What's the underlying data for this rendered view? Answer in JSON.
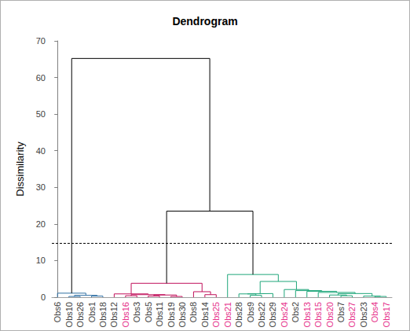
{
  "chart_data": {
    "type": "dendrogram",
    "title": "Dendrogram",
    "y_label": "Dissimilarity",
    "ylim": [
      0,
      70
    ],
    "yticks": [
      0,
      10,
      20,
      30,
      40,
      50,
      60,
      70
    ],
    "cut_line": 14.7,
    "tree": {
      "height": 65.2,
      "color": "#000000",
      "children": [
        {
          "height": 1.1,
          "color": "#2f6fa3",
          "children": [
            {
              "name": "Obs6",
              "color": "#404040"
            },
            {
              "height": 0.5,
              "children": [
                {
                  "height": 0.2,
                  "children": [
                    {
                      "name": "Obs10",
                      "color": "#404040"
                    },
                    {
                      "name": "Obs26",
                      "color": "#404040"
                    }
                  ]
                },
                {
                  "height": 0.3,
                  "children": [
                    {
                      "name": "Obs1",
                      "color": "#404040"
                    },
                    {
                      "name": "Obs18",
                      "color": "#404040"
                    }
                  ]
                }
              ]
            }
          ]
        },
        {
          "height": 23.5,
          "children": [
            {
              "height": 3.8,
              "color": "#c0105a",
              "children": [
                {
                  "height": 0.9,
                  "children": [
                    {
                      "name": "Obs12",
                      "color": "#404040"
                    },
                    {
                      "height": 0.7,
                      "children": [
                        {
                          "height": 0.4,
                          "children": [
                            {
                              "name": "Obs16",
                              "color": "#e6308a"
                            },
                            {
                              "name": "Obs3",
                              "color": "#404040"
                            }
                          ]
                        },
                        {
                          "height": 0.6,
                          "children": [
                            {
                              "height": 0.3,
                              "children": [
                                {
                                  "name": "Obs5",
                                  "color": "#404040"
                                },
                                {
                                  "name": "Obs11",
                                  "color": "#404040"
                                }
                              ]
                            },
                            {
                              "height": 0.2,
                              "children": [
                                {
                                  "name": "Obs19",
                                  "color": "#404040"
                                },
                                {
                                  "name": "Obs30",
                                  "color": "#404040"
                                }
                              ]
                            }
                          ]
                        }
                      ]
                    }
                  ]
                },
                {
                  "height": 1.5,
                  "children": [
                    {
                      "name": "Obs8",
                      "color": "#404040"
                    },
                    {
                      "height": 0.7,
                      "children": [
                        {
                          "name": "Obs14",
                          "color": "#404040"
                        },
                        {
                          "name": "Obs25",
                          "color": "#e6308a"
                        }
                      ]
                    }
                  ]
                }
              ]
            },
            {
              "height": 6.2,
              "color": "#1fa67a",
              "children": [
                {
                  "name": "Obs21",
                  "color": "#e6308a"
                },
                {
                  "height": 4.3,
                  "children": [
                    {
                      "height": 1.0,
                      "children": [
                        {
                          "height": 0.9,
                          "children": [
                            {
                              "name": "Obs28",
                              "color": "#404040"
                            },
                            {
                              "height": 0.5,
                              "children": [
                                {
                                  "name": "Obs9",
                                  "color": "#404040"
                                },
                                {
                                  "name": "Obs22",
                                  "color": "#404040"
                                }
                              ]
                            }
                          ]
                        },
                        {
                          "name": "Obs29",
                          "color": "#404040"
                        }
                      ]
                    },
                    {
                      "height": 2.1,
                      "children": [
                        {
                          "name": "Obs24",
                          "color": "#e6308a"
                        },
                        {
                          "height": 1.8,
                          "children": [
                            {
                              "name": "Obs2",
                              "color": "#404040"
                            },
                            {
                              "height": 1.6,
                              "children": [
                                {
                                  "name": "Obs13",
                                  "color": "#e6308a"
                                },
                                {
                                  "height": 1.3,
                                  "children": [
                                    {
                                      "name": "Obs15",
                                      "color": "#e6308a"
                                    },
                                    {
                                      "height": 1.0,
                                      "children": [
                                        {
                                          "height": 0.6,
                                          "children": [
                                            {
                                              "name": "Obs20",
                                              "color": "#e6308a"
                                            },
                                            {
                                              "height": 0.4,
                                              "children": [
                                                {
                                                  "name": "Obs7",
                                                  "color": "#404040"
                                                },
                                                {
                                                  "name": "Obs27",
                                                  "color": "#e6308a"
                                                }
                                              ]
                                            }
                                          ]
                                        },
                                        {
                                          "height": 0.3,
                                          "children": [
                                            {
                                              "name": "Obs23",
                                              "color": "#404040"
                                            },
                                            {
                                              "height": 0.2,
                                              "children": [
                                                {
                                                  "name": "Obs4",
                                                  "color": "#e6308a"
                                                },
                                                {
                                                  "name": "Obs17",
                                                  "color": "#e6308a"
                                                }
                                              ]
                                            }
                                          ]
                                        }
                                      ]
                                    }
                                  ]
                                }
                              ]
                            }
                          ]
                        }
                      ]
                    }
                  ]
                }
              ]
            }
          ]
        }
      ]
    }
  }
}
